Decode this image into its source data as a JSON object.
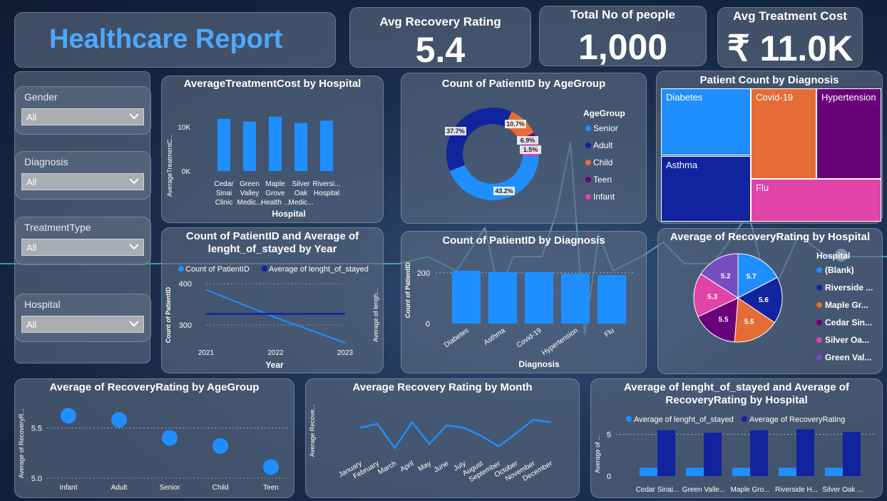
{
  "title": "Healthcare Report",
  "kpis": [
    {
      "label": "Avg Recovery Rating",
      "value": "5.4"
    },
    {
      "label": "Total No of people",
      "value": "1,000"
    },
    {
      "label": "Avg Treatment Cost",
      "value": "₹ 11.0K"
    }
  ],
  "slicers": [
    {
      "label": "Gender",
      "value": "All"
    },
    {
      "label": "Diagnosis",
      "value": "All"
    },
    {
      "label": "TreatmentType",
      "value": "All"
    },
    {
      "label": "Hospital",
      "value": "All"
    }
  ],
  "colors": {
    "blue": "#1f8fff",
    "navy": "#12239e",
    "orange": "#e66c37",
    "purple": "#6b007b",
    "pink": "#e044a7",
    "violet": "#744ec2"
  },
  "chart_data": [
    {
      "type": "bar",
      "title": "AverageTreatmentCost by Hospital",
      "xlabel": "Hospital",
      "ylabel": "AverageTreatmentC...",
      "ticks": [
        "0K",
        "10K"
      ],
      "ylim": [
        0,
        15000
      ],
      "categories": [
        [
          "Cedar",
          "Sinai",
          "Clinic"
        ],
        [
          "Green",
          "Valley",
          "Medic..."
        ],
        [
          "Maple",
          "Grove",
          "Health ..."
        ],
        [
          "Silver",
          "Oak",
          "Medic..."
        ],
        [
          "Riversi...",
          "Hospital"
        ]
      ],
      "values": [
        11800,
        11200,
        12300,
        10900,
        11400
      ]
    },
    {
      "type": "pie",
      "title": "Count of PatientID by AgeGroup",
      "legend_title": "AgeGroup",
      "slices": [
        {
          "name": "Senior",
          "value": 43.2,
          "label": "43.2%",
          "color": "#1f8fff"
        },
        {
          "name": "Adult",
          "value": 37.7,
          "label": "37.7%",
          "color": "#12239e"
        },
        {
          "name": "Child",
          "value": 10.7,
          "label": "10.7%",
          "color": "#e66c37"
        },
        {
          "name": "Teen",
          "value": 6.9,
          "label": "6.9%",
          "color": "#6b007b"
        },
        {
          "name": "Infant",
          "value": 1.5,
          "label": "1.5%",
          "color": "#e044a7"
        }
      ]
    },
    {
      "type": "heatmap",
      "title": "Patient Count by Diagnosis",
      "cells": [
        {
          "name": "Diabetes",
          "color": "#1f8fff"
        },
        {
          "name": "Covid-19",
          "color": "#e66c37"
        },
        {
          "name": "Hypertension",
          "color": "#6b007b"
        },
        {
          "name": "Asthma",
          "color": "#12239e"
        },
        {
          "name": "Flu",
          "color": "#e044a7"
        }
      ]
    },
    {
      "type": "line",
      "title": "Count of PatientID and Average of lenght_of_stayed by Year",
      "xlabel": "Year",
      "ylabel": "Count of PatientID",
      "ylabel2": "Average of lengh...",
      "x": [
        "2021",
        "2022",
        "2023"
      ],
      "ticks": [
        "400",
        "300"
      ],
      "ylim": [
        250,
        400
      ],
      "series": [
        {
          "name": "Count of PatientID",
          "values": [
            385,
            318,
            257
          ],
          "color": "#1f8fff"
        },
        {
          "name": "Average of lenght_of_stayed",
          "values": [
            327,
            327,
            327
          ],
          "color": "#12239e"
        }
      ]
    },
    {
      "type": "bar",
      "title": "Count of PatientID by Diagnosis",
      "xlabel": "Diagnosis",
      "ylabel": "Count of PatientID",
      "ticks": [
        "0",
        "200"
      ],
      "ylim": [
        0,
        250
      ],
      "categories": [
        "Diabetes",
        "Asthma",
        "Covid-19",
        "Hypertension",
        "Flu"
      ],
      "values": [
        208,
        203,
        203,
        197,
        191
      ]
    },
    {
      "type": "pie",
      "title": "Average of RecoveryRating by Hospital",
      "legend_title": "Hospital",
      "slices": [
        {
          "name": "(Blank)",
          "value": 5.7,
          "label": "5.7",
          "color": "#1f8fff"
        },
        {
          "name": "Riverside ...",
          "value": 5.6,
          "label": "5.6",
          "color": "#12239e"
        },
        {
          "name": "Maple Gr...",
          "value": 5.5,
          "label": "5.5",
          "color": "#e66c37"
        },
        {
          "name": "Cedar Sin...",
          "value": 5.5,
          "label": "5.5",
          "color": "#6b007b"
        },
        {
          "name": "Silver Oa...",
          "value": 5.3,
          "label": "5.3",
          "color": "#e044a7"
        },
        {
          "name": "Green Val...",
          "value": 5.2,
          "label": "5.2",
          "color": "#744ec2"
        }
      ]
    },
    {
      "type": "scatter",
      "title": "Average of RecoveryRating by AgeGroup",
      "ylabel": "Average of RecoveryR...",
      "ticks": [
        "5.5",
        "5.0"
      ],
      "ylim": [
        5.0,
        5.7
      ],
      "categories": [
        "Infant",
        "Adult",
        "Senior",
        "Child",
        "Teen"
      ],
      "values": [
        5.62,
        5.58,
        5.4,
        5.32,
        5.11
      ]
    },
    {
      "type": "line",
      "title": "Average Recovery Rating by Month",
      "ylabel": "Average Recove...",
      "ylim": [
        5.2,
        5.8
      ],
      "categories": [
        "January",
        "February",
        "March",
        "April",
        "May",
        "June",
        "July",
        "August",
        "September",
        "October",
        "November",
        "December"
      ],
      "values": [
        5.55,
        5.6,
        5.3,
        5.62,
        5.35,
        5.58,
        5.55,
        5.45,
        5.32,
        5.48,
        5.65,
        5.62
      ]
    },
    {
      "type": "bar",
      "title": "Average of lenght_of_stayed and Average of RecoveryRating by Hospital",
      "ylabel": "Average of ...",
      "ticks": [
        "5",
        "0"
      ],
      "ylim": [
        0,
        6.5
      ],
      "categories": [
        "Cedar Sinai...",
        "Green Valle...",
        "Maple Gro...",
        "Riverside H...",
        "Silver Oak ..."
      ],
      "series": [
        {
          "name": "Average of lenght_of_stayed",
          "values": [
            1.0,
            1.0,
            1.0,
            1.0,
            1.0
          ],
          "color": "#1f8fff"
        },
        {
          "name": "Average of RecoveryRating",
          "values": [
            5.5,
            5.2,
            5.5,
            5.6,
            5.3
          ],
          "color": "#12239e"
        }
      ]
    }
  ]
}
